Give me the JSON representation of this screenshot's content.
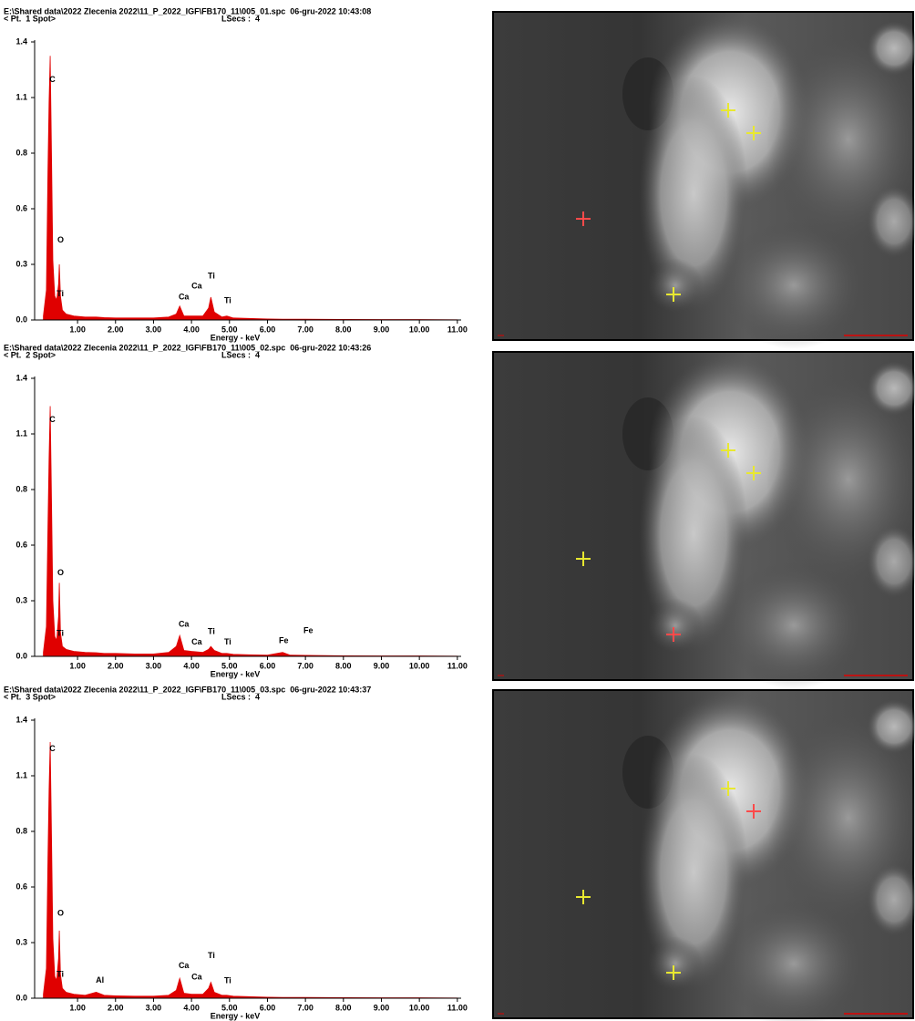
{
  "chart_data": [
    {
      "type": "area",
      "title": "E:\\Shared data\\2022 Zlecenia 2022\\11_P_2022_IGF\\FB170_11\\005_01.spc  06-gru-2022 10:43:08",
      "subtitle": "< Pt.  1 Spot>",
      "note": "LSecs :  4",
      "x_label": "Energy - keV",
      "color": "#e00000",
      "grid": false,
      "xlim": [
        -0.13,
        11.1
      ],
      "ylim": [
        0,
        1.4
      ],
      "xticks": [
        {
          "value": 1,
          "label": "1.00"
        },
        {
          "value": 2,
          "label": "2.00"
        },
        {
          "value": 3,
          "label": "3.00"
        },
        {
          "value": 4,
          "label": "4.00"
        },
        {
          "value": 5,
          "label": "5.00"
        },
        {
          "value": 6,
          "label": "6.00"
        },
        {
          "value": 7,
          "label": "7.00"
        },
        {
          "value": 8,
          "label": "8.00"
        },
        {
          "value": 9,
          "label": "9.00"
        },
        {
          "value": 10,
          "label": "10.00"
        },
        {
          "value": 11,
          "label": "11.00"
        }
      ],
      "yticks": [
        {
          "value": 0,
          "label": "0.0"
        },
        {
          "value": 0.28,
          "label": "0.3"
        },
        {
          "value": 0.56,
          "label": "0.6"
        },
        {
          "value": 0.84,
          "label": "0.8"
        },
        {
          "value": 1.12,
          "label": "1.1"
        },
        1.4
      ],
      "x": [
        0.1,
        0.18,
        0.22,
        0.25,
        0.28,
        0.31,
        0.35,
        0.4,
        0.45,
        0.5,
        0.52,
        0.55,
        0.6,
        0.7,
        0.9,
        1.2,
        1.49,
        1.7,
        2.0,
        2.5,
        3.0,
        3.4,
        3.6,
        3.69,
        3.8,
        4.0,
        4.3,
        4.45,
        4.51,
        4.6,
        4.8,
        4.93,
        5.1,
        5.5,
        6.0,
        6.4,
        6.6,
        7.0,
        8.0,
        9.0,
        10.0,
        11.0
      ],
      "values": [
        0.02,
        0.15,
        0.75,
        1.1,
        1.33,
        0.9,
        0.3,
        0.12,
        0.1,
        0.18,
        0.28,
        0.12,
        0.05,
        0.03,
        0.02,
        0.015,
        0.015,
        0.012,
        0.01,
        0.01,
        0.01,
        0.015,
        0.03,
        0.07,
        0.02,
        0.02,
        0.02,
        0.06,
        0.115,
        0.04,
        0.015,
        0.02,
        0.01,
        0.008,
        0.005,
        0.004,
        0.004,
        0.004,
        0.003,
        0.002,
        0.002,
        0.001
      ],
      "annotations": [
        {
          "text": "C",
          "x": 0.26,
          "y": 1.21
        },
        {
          "text": "O",
          "x": 0.47,
          "y": 0.4
        },
        {
          "text": "Ti",
          "x": 0.45,
          "y": 0.13
        },
        {
          "text": "Ca",
          "x": 3.66,
          "y": 0.115
        },
        {
          "text": "Ca",
          "x": 4.0,
          "y": 0.17
        },
        {
          "text": "Ti",
          "x": 4.43,
          "y": 0.22
        },
        {
          "text": "Ti",
          "x": 4.86,
          "y": 0.096
        }
      ]
    },
    {
      "type": "area",
      "title": "E:\\Shared data\\2022 Zlecenia 2022\\11_P_2022_IGF\\FB170_11\\005_02.spc  06-gru-2022 10:43:26",
      "subtitle": "< Pt.  2 Spot>",
      "note": "LSecs :  4",
      "x_label": "Energy - keV",
      "color": "#e00000",
      "grid": false,
      "xlim": [
        -0.13,
        11.1
      ],
      "ylim": [
        0,
        1.4
      ],
      "xticks": [
        {
          "value": 1,
          "label": "1.00"
        },
        {
          "value": 2,
          "label": "2.00"
        },
        {
          "value": 3,
          "label": "3.00"
        },
        {
          "value": 4,
          "label": "4.00"
        },
        {
          "value": 5,
          "label": "5.00"
        },
        {
          "value": 6,
          "label": "6.00"
        },
        {
          "value": 7,
          "label": "7.00"
        },
        {
          "value": 8,
          "label": "8.00"
        },
        {
          "value": 9,
          "label": "9.00"
        },
        {
          "value": 10,
          "label": "10.00"
        },
        {
          "value": 11,
          "label": "11.00"
        }
      ],
      "yticks": [
        {
          "value": 0,
          "label": "0.0"
        },
        {
          "value": 0.28,
          "label": "0.3"
        },
        {
          "value": 0.56,
          "label": "0.6"
        },
        {
          "value": 0.84,
          "label": "0.8"
        },
        {
          "value": 1.12,
          "label": "1.1"
        },
        1.4
      ],
      "x": [
        0.1,
        0.18,
        0.22,
        0.25,
        0.28,
        0.31,
        0.35,
        0.4,
        0.45,
        0.5,
        0.52,
        0.55,
        0.6,
        0.7,
        0.9,
        1.2,
        1.49,
        1.7,
        2.0,
        2.5,
        3.0,
        3.4,
        3.6,
        3.69,
        3.8,
        4.0,
        4.3,
        4.45,
        4.51,
        4.6,
        4.8,
        4.93,
        5.1,
        5.5,
        6.0,
        6.4,
        6.6,
        7.0,
        8.0,
        9.0,
        10.0,
        11.0
      ],
      "values": [
        0.02,
        0.15,
        0.65,
        1.0,
        1.26,
        0.85,
        0.28,
        0.1,
        0.08,
        0.2,
        0.37,
        0.12,
        0.05,
        0.035,
        0.025,
        0.02,
        0.018,
        0.015,
        0.015,
        0.012,
        0.012,
        0.02,
        0.05,
        0.105,
        0.03,
        0.025,
        0.02,
        0.035,
        0.05,
        0.03,
        0.015,
        0.015,
        0.01,
        0.008,
        0.006,
        0.02,
        0.006,
        0.005,
        0.003,
        0.002,
        0.002,
        0.001
      ],
      "annotations": [
        {
          "text": "C",
          "x": 0.26,
          "y": 1.19
        },
        {
          "text": "O",
          "x": 0.47,
          "y": 0.42
        },
        {
          "text": "Ti",
          "x": 0.45,
          "y": 0.115
        },
        {
          "text": "Ca",
          "x": 3.66,
          "y": 0.16
        },
        {
          "text": "Ca",
          "x": 4.0,
          "y": 0.07
        },
        {
          "text": "Ti",
          "x": 4.43,
          "y": 0.124
        },
        {
          "text": "Ti",
          "x": 4.86,
          "y": 0.07
        },
        {
          "text": "Fe",
          "x": 6.3,
          "y": 0.078
        },
        {
          "text": "Fe",
          "x": 6.95,
          "y": 0.128
        }
      ]
    },
    {
      "type": "area",
      "title": "E:\\Shared data\\2022 Zlecenia 2022\\11_P_2022_IGF\\FB170_11\\005_03.spc  06-gru-2022 10:43:37",
      "subtitle": "< Pt.  3 Spot>",
      "note": "LSecs :  4",
      "x_label": "Energy - keV",
      "color": "#e00000",
      "grid": false,
      "xlim": [
        -0.13,
        11.1
      ],
      "ylim": [
        0,
        1.4
      ],
      "xticks": [
        {
          "value": 1,
          "label": "1.00"
        },
        {
          "value": 2,
          "label": "2.00"
        },
        {
          "value": 3,
          "label": "3.00"
        },
        {
          "value": 4,
          "label": "4.00"
        },
        {
          "value": 5,
          "label": "5.00"
        },
        {
          "value": 6,
          "label": "6.00"
        },
        {
          "value": 7,
          "label": "7.00"
        },
        {
          "value": 8,
          "label": "8.00"
        },
        {
          "value": 9,
          "label": "9.00"
        },
        {
          "value": 10,
          "label": "10.00"
        },
        {
          "value": 11,
          "label": "11.00"
        }
      ],
      "yticks": [
        {
          "value": 0,
          "label": "0.0"
        },
        {
          "value": 0.28,
          "label": "0.3"
        },
        {
          "value": 0.56,
          "label": "0.6"
        },
        {
          "value": 0.84,
          "label": "0.8"
        },
        {
          "value": 1.12,
          "label": "1.1"
        },
        1.4
      ],
      "x": [
        0.1,
        0.18,
        0.22,
        0.25,
        0.28,
        0.31,
        0.35,
        0.4,
        0.45,
        0.5,
        0.52,
        0.55,
        0.6,
        0.7,
        0.9,
        1.2,
        1.49,
        1.7,
        2.0,
        2.5,
        3.0,
        3.4,
        3.6,
        3.69,
        3.8,
        4.0,
        4.3,
        4.45,
        4.51,
        4.6,
        4.8,
        4.93,
        5.1,
        5.5,
        6.0,
        6.4,
        6.6,
        7.0,
        8.0,
        9.0,
        10.0,
        11.0
      ],
      "values": [
        0.02,
        0.15,
        0.7,
        1.05,
        1.29,
        0.88,
        0.3,
        0.11,
        0.09,
        0.2,
        0.34,
        0.12,
        0.05,
        0.03,
        0.02,
        0.015,
        0.03,
        0.015,
        0.012,
        0.01,
        0.01,
        0.015,
        0.04,
        0.1,
        0.025,
        0.02,
        0.02,
        0.05,
        0.08,
        0.03,
        0.015,
        0.015,
        0.01,
        0.008,
        0.005,
        0.004,
        0.004,
        0.004,
        0.003,
        0.002,
        0.002,
        0.001
      ],
      "annotations": [
        {
          "text": "C",
          "x": 0.26,
          "y": 1.255
        },
        {
          "text": "O",
          "x": 0.47,
          "y": 0.426
        },
        {
          "text": "Ti",
          "x": 0.45,
          "y": 0.118
        },
        {
          "text": "Al",
          "x": 1.48,
          "y": 0.09
        },
        {
          "text": "Ca",
          "x": 3.66,
          "y": 0.163
        },
        {
          "text": "Ca",
          "x": 4.0,
          "y": 0.104
        },
        {
          "text": "Ti",
          "x": 4.43,
          "y": 0.213
        },
        {
          "text": "Ti",
          "x": 4.86,
          "y": 0.086
        }
      ]
    }
  ]
}
